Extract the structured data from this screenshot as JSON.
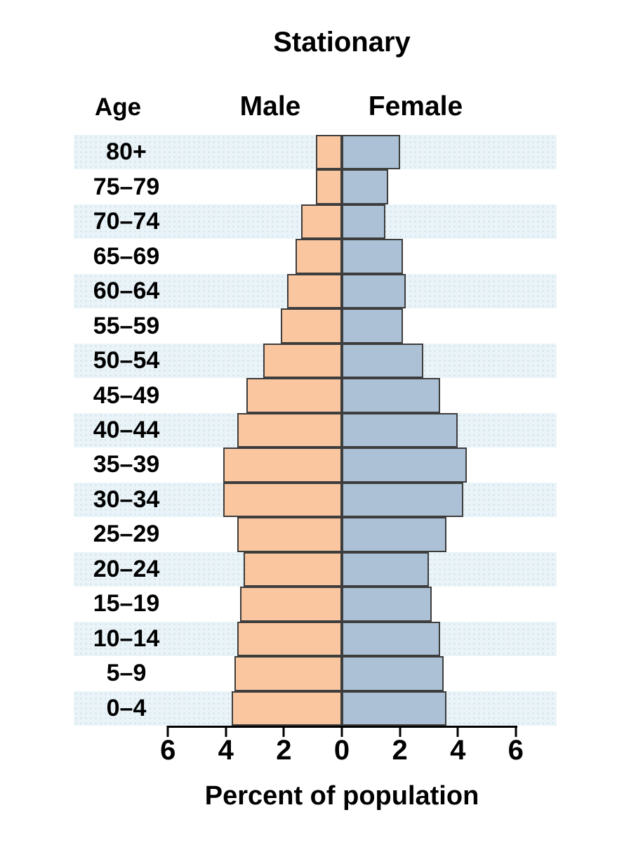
{
  "chart_data": {
    "type": "bar",
    "subtype": "population-pyramid",
    "title": "Stationary",
    "xlabel": "Percent of population",
    "age_header": "Age",
    "unit": "percent",
    "grid": false,
    "row_stripe_color": "#EAF4F8",
    "xlim": [
      -6,
      6
    ],
    "x_ticks": [
      "6",
      "4",
      "2",
      "0",
      "2",
      "4",
      "6"
    ],
    "x_tick_values": [
      -6,
      -4,
      -2,
      0,
      2,
      4,
      6
    ],
    "categories": [
      "80+",
      "75–79",
      "70–74",
      "65–69",
      "60–64",
      "55–59",
      "50–54",
      "45–49",
      "40–44",
      "35–39",
      "30–34",
      "25–29",
      "20–24",
      "15–19",
      "10–14",
      "5–9",
      "0–4"
    ],
    "series": [
      {
        "name": "Male",
        "side": "left",
        "color": "#F9C6A0",
        "values": [
          0.9,
          0.9,
          1.4,
          1.6,
          1.9,
          2.1,
          2.7,
          3.3,
          3.6,
          4.1,
          4.1,
          3.6,
          3.4,
          3.5,
          3.6,
          3.7,
          3.8
        ]
      },
      {
        "name": "Female",
        "side": "right",
        "color": "#ACC1D5",
        "values": [
          2.0,
          1.6,
          1.5,
          2.1,
          2.2,
          2.1,
          2.8,
          3.4,
          4.0,
          4.3,
          4.2,
          3.6,
          3.0,
          3.1,
          3.4,
          3.5,
          3.6
        ]
      }
    ]
  }
}
